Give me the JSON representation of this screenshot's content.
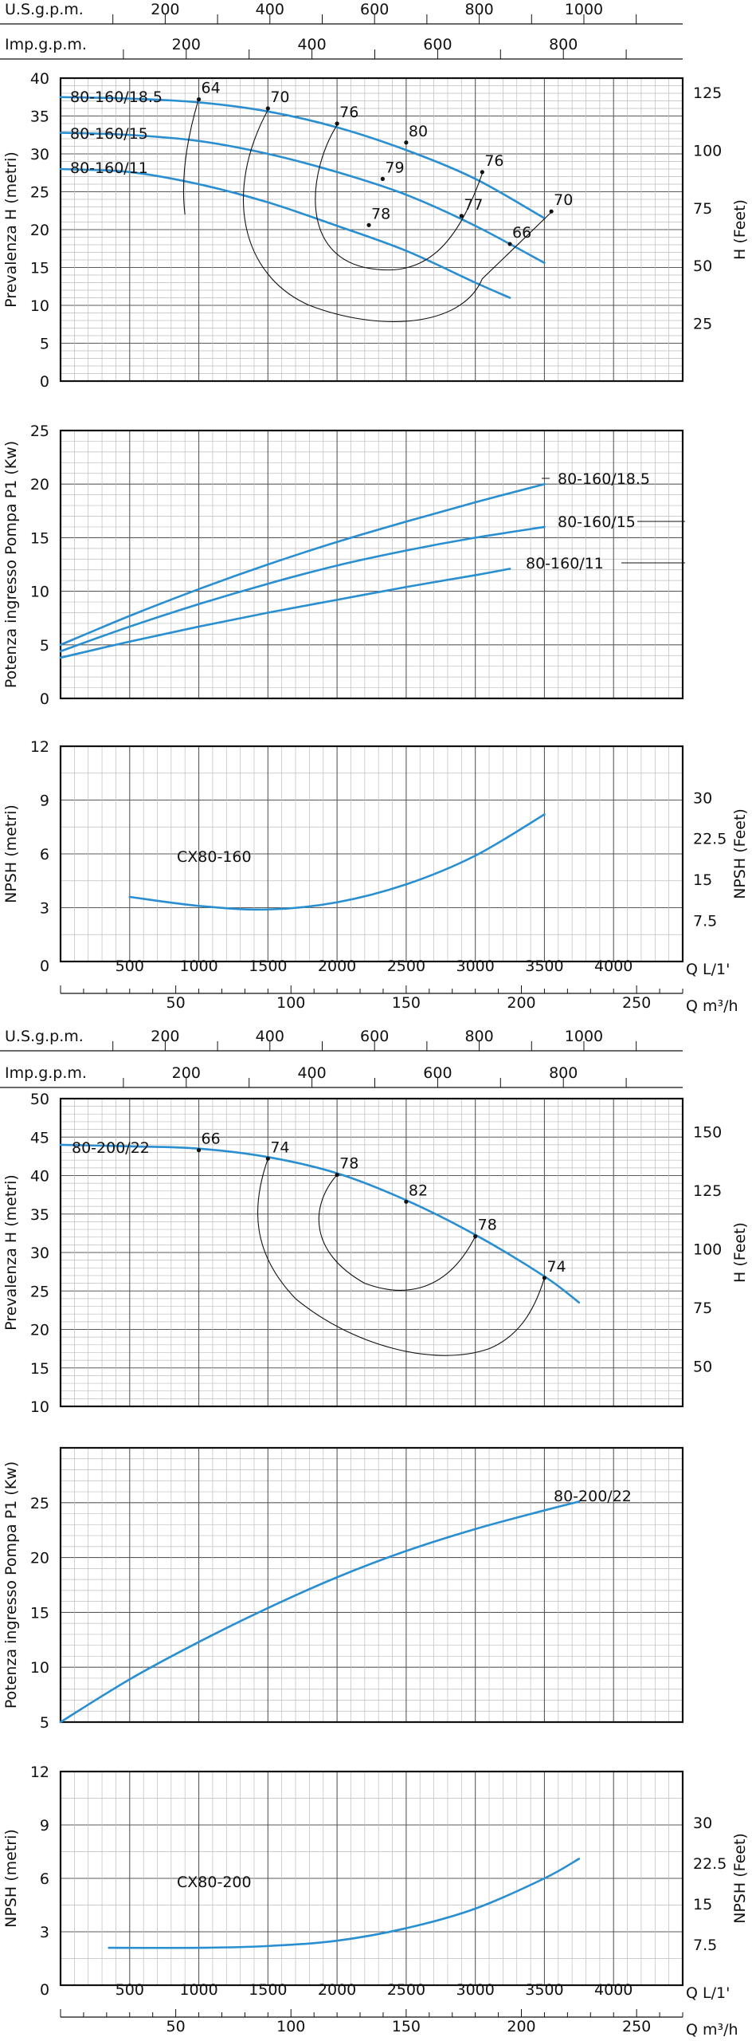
{
  "colors": {
    "curve": "#2a8fd0",
    "grid": "#bdbdbd",
    "grid_major": "#5a5a5a",
    "frame": "#111111",
    "iso": "#111111"
  },
  "flow_scales": {
    "q_l_min": {
      "label": "Q L/1'",
      "ticks": [
        "0",
        "500",
        "1000",
        "1500",
        "2000",
        "2500",
        "3000",
        "3500",
        "4000"
      ],
      "values": [
        0,
        500,
        1000,
        1500,
        2000,
        2500,
        3000,
        3500,
        4000
      ]
    },
    "q_m3h": {
      "label": "Q m³/h",
      "ticks": [
        "50",
        "100",
        "150",
        "200",
        "250"
      ],
      "values": [
        50,
        100,
        150,
        200,
        250
      ]
    },
    "us_gpm": {
      "label": "U.S.g.p.m.",
      "ticks": [
        "200",
        "400",
        "600",
        "800",
        "1000"
      ],
      "values": [
        200,
        400,
        600,
        800,
        1000
      ]
    },
    "imp_gpm": {
      "label": "Imp.g.p.m.",
      "ticks": [
        "200",
        "400",
        "600",
        "800"
      ],
      "values": [
        200,
        400,
        600,
        800
      ]
    }
  },
  "chart_data": [
    {
      "type": "line",
      "title": "",
      "xlabel": "",
      "xlim": [
        0,
        4500
      ],
      "ylabel": "Prevalenza H (metri)",
      "ylim": [
        0,
        40
      ],
      "y_ticks": [
        0,
        5,
        10,
        15,
        20,
        25,
        30,
        35,
        40
      ],
      "y2label": "H (Feet)",
      "y2_ticks": [
        25,
        50,
        75,
        100,
        125
      ],
      "series": [
        {
          "name": "80-160/18.5",
          "x": [
            0,
            500,
            1000,
            1500,
            2000,
            2500,
            3000,
            3500
          ],
          "y": [
            37.5,
            37.3,
            36.8,
            35.6,
            33.5,
            30.5,
            26.7,
            21.5
          ]
        },
        {
          "name": "80-160/15",
          "x": [
            0,
            500,
            1000,
            1500,
            2000,
            2500,
            3000,
            3500
          ],
          "y": [
            32.8,
            32.5,
            31.7,
            30.0,
            27.6,
            24.6,
            20.5,
            15.6
          ]
        },
        {
          "name": "80-160/11",
          "x": [
            0,
            500,
            1000,
            1500,
            2000,
            2500,
            3000,
            3250
          ],
          "y": [
            28.0,
            27.6,
            26.0,
            23.6,
            20.5,
            17.2,
            13.0,
            11.0
          ]
        }
      ],
      "efficiency_labels": [
        {
          "text": "64",
          "x": 1000,
          "y": 37.2
        },
        {
          "text": "70",
          "x": 1500,
          "y": 36.0
        },
        {
          "text": "76",
          "x": 2000,
          "y": 34.0
        },
        {
          "text": "80",
          "x": 2500,
          "y": 31.5
        },
        {
          "text": "79",
          "x": 2330,
          "y": 26.7
        },
        {
          "text": "78",
          "x": 2230,
          "y": 20.6
        },
        {
          "text": "76",
          "x": 3050,
          "y": 27.6
        },
        {
          "text": "77",
          "x": 2900,
          "y": 21.8
        },
        {
          "text": "66",
          "x": 3250,
          "y": 18.1
        },
        {
          "text": "70",
          "x": 3550,
          "y": 22.4
        }
      ]
    },
    {
      "type": "line",
      "title": "",
      "xlabel": "",
      "xlim": [
        0,
        4500
      ],
      "ylabel": "Potenza ingresso Pompa P1 (Kw)",
      "ylim": [
        0,
        25
      ],
      "y_ticks": [
        0,
        5,
        10,
        15,
        20,
        25
      ],
      "series": [
        {
          "name": "80-160/18.5",
          "x": [
            0,
            500,
            1000,
            1500,
            2000,
            2500,
            3000,
            3500
          ],
          "y": [
            5.0,
            7.7,
            10.2,
            12.5,
            14.6,
            16.5,
            18.3,
            20.0
          ]
        },
        {
          "name": "80-160/15",
          "x": [
            0,
            500,
            1000,
            1500,
            2000,
            2500,
            3000,
            3500
          ],
          "y": [
            4.4,
            6.7,
            8.8,
            10.7,
            12.4,
            13.8,
            15.0,
            16.0
          ]
        },
        {
          "name": "80-160/11",
          "x": [
            0,
            500,
            1000,
            1500,
            2000,
            2500,
            3000,
            3250
          ],
          "y": [
            3.8,
            5.3,
            6.7,
            8.0,
            9.2,
            10.4,
            11.5,
            12.1
          ]
        }
      ]
    },
    {
      "type": "line",
      "title": "",
      "xlabel": "Q L/1'",
      "xlim": [
        0,
        4500
      ],
      "ylabel": "NPSH (metri)",
      "ylim": [
        0,
        12
      ],
      "y_ticks": [
        3,
        6,
        9,
        12
      ],
      "y2label": "NPSH (Feet)",
      "y2_ticks": [
        7.5,
        15,
        22.5,
        30
      ],
      "series": [
        {
          "name": "CX80-160",
          "x": [
            500,
            1000,
            1500,
            2000,
            2500,
            3000,
            3500
          ],
          "y": [
            3.6,
            3.1,
            2.9,
            3.3,
            4.3,
            5.9,
            8.2
          ]
        }
      ]
    },
    {
      "type": "line",
      "title": "",
      "xlabel": "",
      "xlim": [
        0,
        4500
      ],
      "ylabel": "Prevalenza H (metri)",
      "ylim": [
        10,
        50
      ],
      "y_ticks": [
        10,
        15,
        20,
        25,
        30,
        35,
        40,
        45,
        50
      ],
      "y2label": "H (Feet)",
      "y2_ticks": [
        50,
        75,
        100,
        125,
        150
      ],
      "series": [
        {
          "name": "80-200/22",
          "x": [
            0,
            500,
            1000,
            1500,
            2000,
            2500,
            3000,
            3500,
            3750
          ],
          "y": [
            44.0,
            43.8,
            43.5,
            42.4,
            40.3,
            36.8,
            32.3,
            26.9,
            23.5
          ]
        }
      ],
      "efficiency_labels": [
        {
          "text": "66",
          "x": 1000,
          "y": 43.3
        },
        {
          "text": "74",
          "x": 1500,
          "y": 42.2
        },
        {
          "text": "78",
          "x": 2000,
          "y": 40.1
        },
        {
          "text": "82",
          "x": 2500,
          "y": 36.6
        },
        {
          "text": "78",
          "x": 3000,
          "y": 32.1
        },
        {
          "text": "74",
          "x": 3500,
          "y": 26.7
        }
      ]
    },
    {
      "type": "line",
      "title": "",
      "xlabel": "",
      "xlim": [
        0,
        4500
      ],
      "ylabel": "Potenza ingresso Pompa P1 (Kw)",
      "ylim": [
        5,
        30
      ],
      "y_ticks": [
        5,
        10,
        15,
        20,
        25
      ],
      "series": [
        {
          "name": "80-200/22",
          "x": [
            0,
            500,
            1000,
            1500,
            2000,
            2500,
            3000,
            3500,
            3750
          ],
          "y": [
            5.0,
            8.9,
            12.3,
            15.4,
            18.2,
            20.6,
            22.6,
            24.3,
            25.1
          ]
        }
      ]
    },
    {
      "type": "line",
      "title": "",
      "xlabel": "Q L/1'",
      "xlim": [
        0,
        4500
      ],
      "ylabel": "NPSH (metri)",
      "ylim": [
        0,
        12
      ],
      "y_ticks": [
        3,
        6,
        9,
        12
      ],
      "y2label": "NPSH (Feet)",
      "y2_ticks": [
        7.5,
        15,
        22.5,
        30
      ],
      "series": [
        {
          "name": "CX80-200",
          "x": [
            350,
            1000,
            1500,
            2000,
            2500,
            3000,
            3500,
            3750
          ],
          "y": [
            2.1,
            2.1,
            2.2,
            2.5,
            3.2,
            4.3,
            6.0,
            7.1
          ]
        }
      ]
    }
  ]
}
